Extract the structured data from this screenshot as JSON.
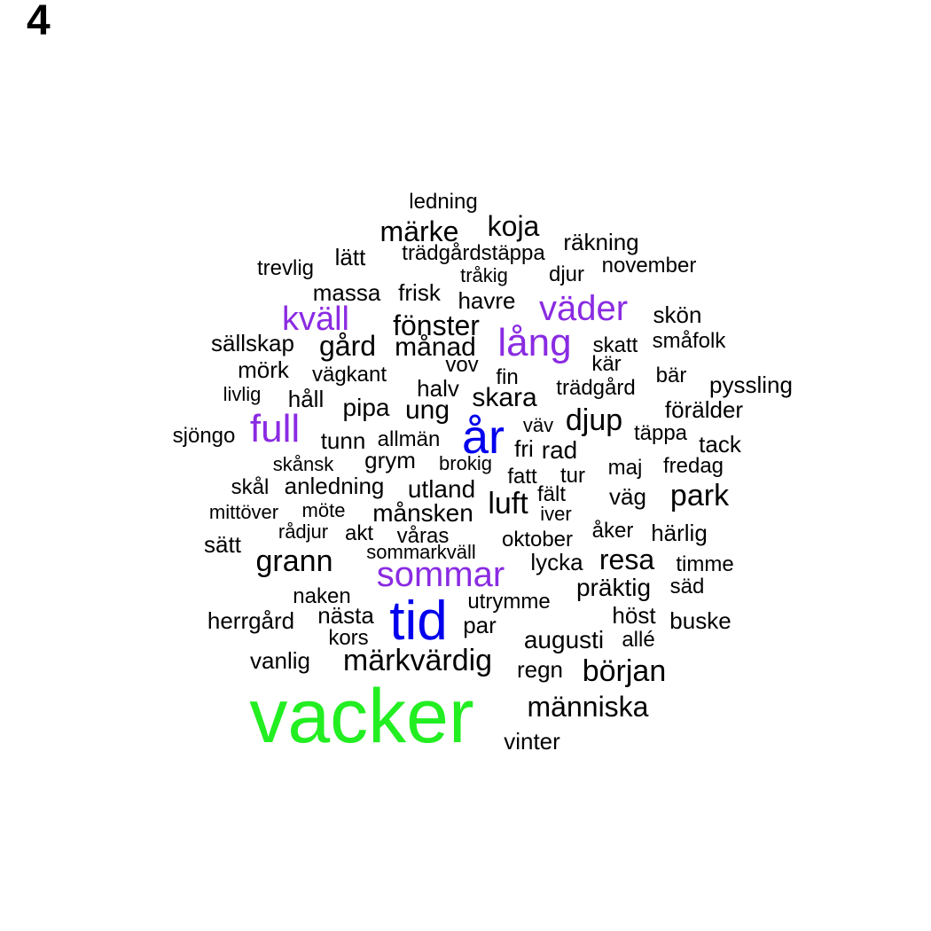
{
  "panel_label": "4",
  "colors": {
    "green": "#22ee22",
    "blue": "#0000ee",
    "purple": "#8a2be2",
    "black": "#000000"
  },
  "words": [
    {
      "text": "vacker",
      "color": "green"
    },
    {
      "text": "tid",
      "color": "blue"
    },
    {
      "text": "år",
      "color": "blue"
    },
    {
      "text": "sommar",
      "color": "purple"
    },
    {
      "text": "full",
      "color": "purple"
    },
    {
      "text": "lång",
      "color": "purple"
    },
    {
      "text": "väder",
      "color": "purple"
    },
    {
      "text": "kväll",
      "color": "purple"
    },
    {
      "text": "märkvärdig",
      "color": "black"
    },
    {
      "text": "människa",
      "color": "black"
    },
    {
      "text": "början",
      "color": "black"
    },
    {
      "text": "grann",
      "color": "black"
    },
    {
      "text": "park",
      "color": "black"
    },
    {
      "text": "djup",
      "color": "black"
    },
    {
      "text": "luft",
      "color": "black"
    },
    {
      "text": "resa",
      "color": "black"
    },
    {
      "text": "fönster",
      "color": "black"
    },
    {
      "text": "märke",
      "color": "black"
    },
    {
      "text": "koja",
      "color": "black"
    },
    {
      "text": "gård",
      "color": "black"
    },
    {
      "text": "månad",
      "color": "black"
    },
    {
      "text": "skara",
      "color": "black"
    },
    {
      "text": "ung",
      "color": "black"
    },
    {
      "text": "pipa",
      "color": "black"
    },
    {
      "text": "månsken",
      "color": "black"
    },
    {
      "text": "utland",
      "color": "black"
    },
    {
      "text": "augusti",
      "color": "black"
    },
    {
      "text": "präktig",
      "color": "black"
    },
    {
      "text": "rad",
      "color": "black"
    },
    {
      "text": "halv",
      "color": "black"
    },
    {
      "text": "väg",
      "color": "black"
    },
    {
      "text": "härlig",
      "color": "black"
    },
    {
      "text": "höst",
      "color": "black"
    },
    {
      "text": "vanlig",
      "color": "black"
    },
    {
      "text": "nästa",
      "color": "black"
    },
    {
      "text": "herrgård",
      "color": "black"
    },
    {
      "text": "regn",
      "color": "black"
    },
    {
      "text": "vinter",
      "color": "black"
    },
    {
      "text": "lycka",
      "color": "black"
    },
    {
      "text": "oktober",
      "color": "black"
    },
    {
      "text": "tack",
      "color": "black"
    },
    {
      "text": "pyssling",
      "color": "black"
    },
    {
      "text": "förälder",
      "color": "black"
    },
    {
      "text": "skön",
      "color": "black"
    },
    {
      "text": "trädgård",
      "color": "black"
    },
    {
      "text": "mörk",
      "color": "black"
    },
    {
      "text": "håll",
      "color": "black"
    },
    {
      "text": "sällskap",
      "color": "black"
    },
    {
      "text": "massa",
      "color": "black"
    },
    {
      "text": "frisk",
      "color": "black"
    },
    {
      "text": "havre",
      "color": "black"
    },
    {
      "text": "lätt",
      "color": "black"
    },
    {
      "text": "räkning",
      "color": "black"
    },
    {
      "text": "djur",
      "color": "black"
    },
    {
      "text": "november",
      "color": "black"
    },
    {
      "text": "trevlig",
      "color": "black"
    },
    {
      "text": "ledning",
      "color": "black"
    },
    {
      "text": "trädgårdstäppa",
      "color": "black"
    },
    {
      "text": "tråkig",
      "color": "black"
    },
    {
      "text": "skatt",
      "color": "black"
    },
    {
      "text": "småfolk",
      "color": "black"
    },
    {
      "text": "kär",
      "color": "black"
    },
    {
      "text": "bär",
      "color": "black"
    },
    {
      "text": "vägkant",
      "color": "black"
    },
    {
      "text": "vov",
      "color": "black"
    },
    {
      "text": "fin",
      "color": "black"
    },
    {
      "text": "livlig",
      "color": "black"
    },
    {
      "text": "sjöngo",
      "color": "black"
    },
    {
      "text": "tunn",
      "color": "black"
    },
    {
      "text": "allmän",
      "color": "black"
    },
    {
      "text": "grym",
      "color": "black"
    },
    {
      "text": "brokig",
      "color": "black"
    },
    {
      "text": "väv",
      "color": "black"
    },
    {
      "text": "fri",
      "color": "black"
    },
    {
      "text": "täppa",
      "color": "black"
    },
    {
      "text": "maj",
      "color": "black"
    },
    {
      "text": "fredag",
      "color": "black"
    },
    {
      "text": "skånsk",
      "color": "black"
    },
    {
      "text": "skål",
      "color": "black"
    },
    {
      "text": "anledning",
      "color": "black"
    },
    {
      "text": "fatt",
      "color": "black"
    },
    {
      "text": "tur",
      "color": "black"
    },
    {
      "text": "fält",
      "color": "black"
    },
    {
      "text": "mittöver",
      "color": "black"
    },
    {
      "text": "möte",
      "color": "black"
    },
    {
      "text": "iver",
      "color": "black"
    },
    {
      "text": "rådjur",
      "color": "black"
    },
    {
      "text": "akt",
      "color": "black"
    },
    {
      "text": "våras",
      "color": "black"
    },
    {
      "text": "åker",
      "color": "black"
    },
    {
      "text": "sätt",
      "color": "black"
    },
    {
      "text": "sommarkväll",
      "color": "black"
    },
    {
      "text": "timme",
      "color": "black"
    },
    {
      "text": "naken",
      "color": "black"
    },
    {
      "text": "utrymme",
      "color": "black"
    },
    {
      "text": "säd",
      "color": "black"
    },
    {
      "text": "par",
      "color": "black"
    },
    {
      "text": "buske",
      "color": "black"
    },
    {
      "text": "kors",
      "color": "black"
    },
    {
      "text": "allé",
      "color": "black"
    }
  ]
}
